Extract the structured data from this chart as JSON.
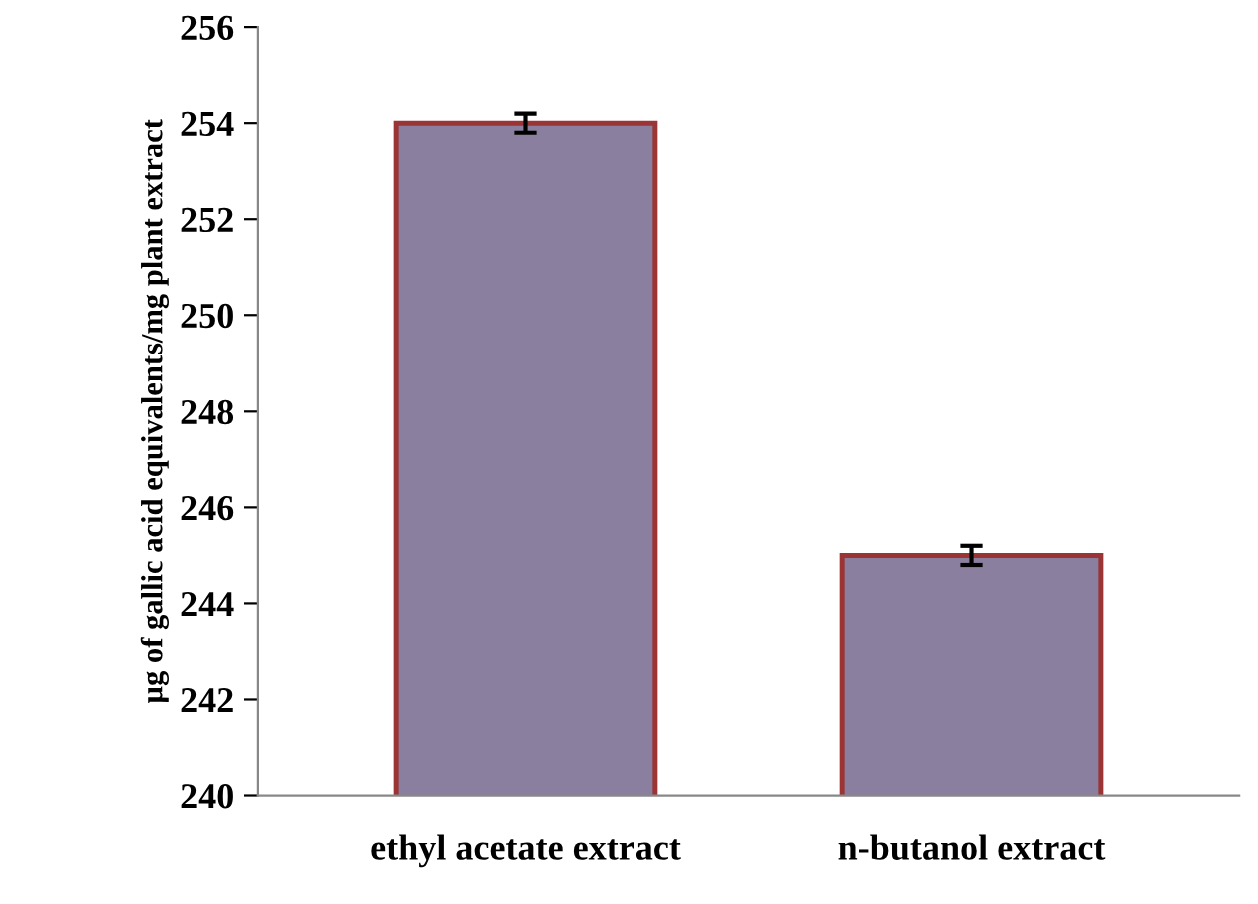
{
  "chart_data": {
    "type": "bar",
    "ylabel": "µg of gallic acid equivalents/mg plant extract",
    "categories": [
      "ethyl acetate extract",
      "n-butanol extract"
    ],
    "values": [
      254,
      245
    ],
    "errors": [
      0.2,
      0.2
    ],
    "color": "#8a7f9e",
    "ylim": [
      240,
      256
    ],
    "yticks": [
      240,
      242,
      244,
      246,
      248,
      250,
      252,
      254,
      256
    ],
    "grid": false,
    "legend": false
  }
}
